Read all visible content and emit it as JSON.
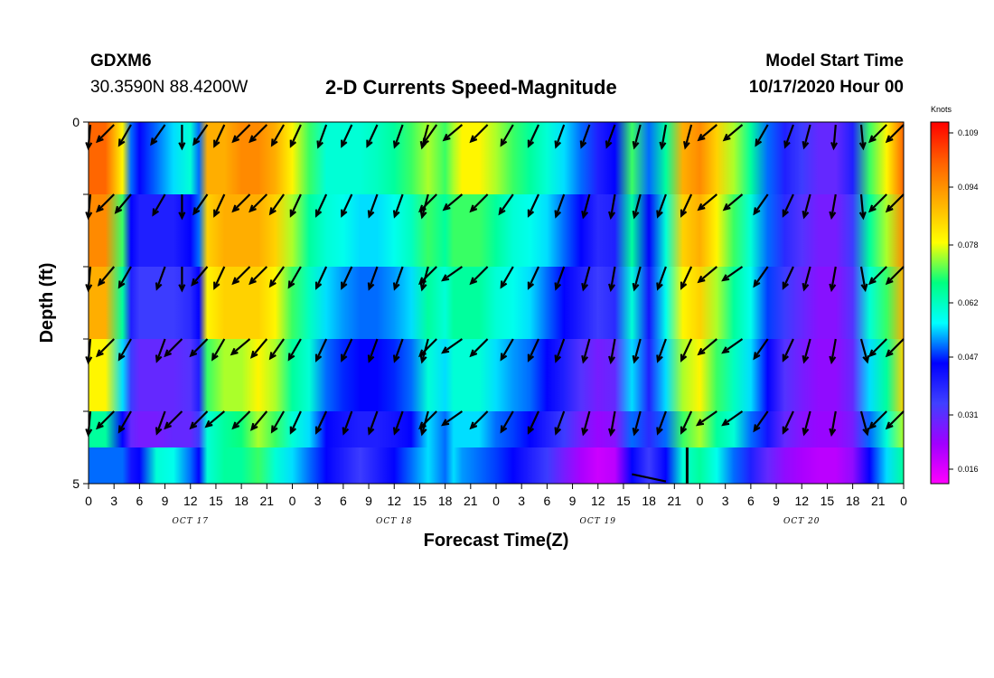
{
  "header": {
    "station_id": "GDXM6",
    "coords": "30.3590N 88.4200W",
    "title": "2-D Currents Speed-Magnitude",
    "start_label": "Model Start Time",
    "start_time": "10/17/2020 Hour 00"
  },
  "colors": {
    "scale": [
      "#ff00ff",
      "#a000ff",
      "#4040ff",
      "#0000ff",
      "#00ffff",
      "#00ff80",
      "#ffff00",
      "#ffb000",
      "#ff6000",
      "#ff0000"
    ]
  },
  "chart_data": {
    "type": "heatmap",
    "xlabel": "Forecast Time(Z)",
    "ylabel": "Depth (ft)",
    "x_unit": "hours since 10/17/2020 00Z",
    "xlim": [
      0,
      96
    ],
    "ylim": [
      0,
      5
    ],
    "x_tick_labels": [
      "0",
      "3",
      "6",
      "9",
      "12",
      "15",
      "18",
      "21",
      "0",
      "3",
      "6",
      "9",
      "12",
      "15",
      "18",
      "21",
      "0",
      "3",
      "6",
      "9",
      "12",
      "15",
      "18",
      "21",
      "0",
      "3",
      "6",
      "9",
      "12",
      "15",
      "18",
      "21",
      "0"
    ],
    "y_tick_labels": [
      "0",
      "5"
    ],
    "day_labels": [
      "OCT 17",
      "OCT 18",
      "OCT 19",
      "OCT 20"
    ],
    "colorbar": {
      "label": "Knots",
      "ticks": [
        "0.109",
        "0.094",
        "0.078",
        "0.062",
        "0.047",
        "0.031",
        "0.016"
      ],
      "range": [
        0.012,
        0.112
      ]
    },
    "depth_layers": [
      0.5,
      1.5,
      2.5,
      3.5,
      4.5
    ],
    "speed_profile_hours": [
      0,
      2,
      4,
      5,
      6,
      8,
      10,
      12,
      13,
      14,
      16,
      18,
      20,
      22,
      24,
      26,
      28,
      30,
      32,
      34,
      36,
      38,
      40,
      42,
      43,
      44,
      46,
      48,
      50,
      52,
      54,
      56,
      58,
      60,
      62,
      64,
      66,
      68,
      70,
      72,
      74,
      76,
      78,
      80,
      82,
      84,
      86,
      88,
      90,
      92,
      94,
      96
    ],
    "speed_layers": [
      [
        0.1,
        0.1,
        0.08,
        0.05,
        0.045,
        0.05,
        0.055,
        0.06,
        0.05,
        0.09,
        0.09,
        0.095,
        0.095,
        0.09,
        0.08,
        0.07,
        0.06,
        0.06,
        0.06,
        0.062,
        0.065,
        0.07,
        0.075,
        0.07,
        0.075,
        0.08,
        0.08,
        0.075,
        0.07,
        0.065,
        0.06,
        0.055,
        0.05,
        0.04,
        0.045,
        0.07,
        0.05,
        0.065,
        0.09,
        0.095,
        0.085,
        0.075,
        0.065,
        0.05,
        0.04,
        0.035,
        0.03,
        0.03,
        0.04,
        0.07,
        0.08,
        0.1
      ],
      [
        0.095,
        0.095,
        0.07,
        0.045,
        0.04,
        0.04,
        0.04,
        0.045,
        0.05,
        0.085,
        0.09,
        0.09,
        0.09,
        0.085,
        0.075,
        0.065,
        0.06,
        0.058,
        0.055,
        0.055,
        0.058,
        0.062,
        0.07,
        0.065,
        0.07,
        0.07,
        0.07,
        0.065,
        0.06,
        0.058,
        0.055,
        0.05,
        0.045,
        0.038,
        0.04,
        0.065,
        0.045,
        0.06,
        0.085,
        0.09,
        0.08,
        0.07,
        0.06,
        0.05,
        0.038,
        0.032,
        0.028,
        0.028,
        0.035,
        0.065,
        0.075,
        0.095
      ],
      [
        0.09,
        0.09,
        0.065,
        0.04,
        0.035,
        0.035,
        0.035,
        0.038,
        0.045,
        0.08,
        0.085,
        0.085,
        0.085,
        0.08,
        0.07,
        0.062,
        0.055,
        0.052,
        0.05,
        0.05,
        0.052,
        0.055,
        0.065,
        0.06,
        0.065,
        0.065,
        0.065,
        0.06,
        0.058,
        0.055,
        0.05,
        0.045,
        0.04,
        0.035,
        0.038,
        0.06,
        0.042,
        0.058,
        0.08,
        0.085,
        0.075,
        0.065,
        0.058,
        0.048,
        0.035,
        0.03,
        0.026,
        0.026,
        0.032,
        0.06,
        0.07,
        0.09
      ],
      [
        0.08,
        0.08,
        0.055,
        0.035,
        0.03,
        0.03,
        0.03,
        0.032,
        0.04,
        0.07,
        0.075,
        0.075,
        0.08,
        0.075,
        0.065,
        0.06,
        0.05,
        0.047,
        0.045,
        0.045,
        0.047,
        0.05,
        0.06,
        0.055,
        0.06,
        0.06,
        0.06,
        0.055,
        0.052,
        0.05,
        0.045,
        0.04,
        0.032,
        0.028,
        0.03,
        0.055,
        0.04,
        0.055,
        0.075,
        0.08,
        0.07,
        0.062,
        0.055,
        0.045,
        0.032,
        0.028,
        0.025,
        0.025,
        0.03,
        0.055,
        0.065,
        0.085
      ],
      [
        0.065,
        0.065,
        0.045,
        0.03,
        0.028,
        0.028,
        0.03,
        0.03,
        0.035,
        0.06,
        0.065,
        0.068,
        0.075,
        0.07,
        0.06,
        0.055,
        0.045,
        0.042,
        0.04,
        0.04,
        0.042,
        0.045,
        0.055,
        0.05,
        0.055,
        0.055,
        0.055,
        0.05,
        0.048,
        0.045,
        0.04,
        0.035,
        0.028,
        0.024,
        0.026,
        0.05,
        0.038,
        0.05,
        0.07,
        0.075,
        0.065,
        0.06,
        0.05,
        0.042,
        0.03,
        0.026,
        0.024,
        0.024,
        0.028,
        0.05,
        0.06,
        0.075
      ]
    ],
    "bottom_layer_speed": [
      0.05,
      0.05,
      0.05,
      0.042,
      0.045,
      0.06,
      0.058,
      0.05,
      0.045,
      0.06,
      0.065,
      0.065,
      0.07,
      0.06,
      0.055,
      0.05,
      0.045,
      0.04,
      0.035,
      0.04,
      0.045,
      0.05,
      0.055,
      0.05,
      0.055,
      0.052,
      0.05,
      0.048,
      0.045,
      0.04,
      0.035,
      0.028,
      0.022,
      0.018,
      0.02,
      0.045,
      0.035,
      0.045,
      0.06,
      0.065,
      0.058,
      0.05,
      0.04,
      0.03,
      0.025,
      0.022,
      0.02,
      0.02,
      0.025,
      0.045,
      0.055,
      0.065
    ],
    "vector_hours": [
      0,
      3,
      5,
      9,
      11,
      14,
      16,
      19,
      21,
      23,
      25,
      28,
      31,
      34,
      37,
      40,
      41,
      44,
      47,
      50,
      53,
      56,
      59,
      62,
      65,
      68,
      71,
      74,
      77,
      80,
      83,
      85,
      88,
      91,
      94,
      96
    ],
    "vector_directions_deg": [
      [
        265,
        225,
        240,
        235,
        270,
        235,
        245,
        225,
        225,
        240,
        245,
        250,
        245,
        245,
        250,
        255,
        235,
        220,
        225,
        240,
        245,
        250,
        250,
        250,
        255,
        260,
        255,
        220,
        220,
        240,
        250,
        255,
        265,
        275,
        225,
        225
      ],
      [
        265,
        225,
        230,
        240,
        270,
        235,
        245,
        225,
        225,
        235,
        245,
        245,
        245,
        250,
        250,
        255,
        225,
        220,
        225,
        235,
        245,
        250,
        255,
        260,
        255,
        250,
        245,
        220,
        220,
        235,
        245,
        255,
        260,
        275,
        225,
        225
      ],
      [
        265,
        230,
        240,
        250,
        270,
        230,
        245,
        225,
        225,
        235,
        240,
        245,
        245,
        250,
        250,
        255,
        225,
        215,
        225,
        240,
        245,
        250,
        255,
        260,
        255,
        250,
        245,
        220,
        215,
        235,
        245,
        255,
        260,
        280,
        225,
        225
      ],
      [
        265,
        225,
        240,
        250,
        225,
        225,
        240,
        220,
        230,
        235,
        240,
        245,
        245,
        250,
        250,
        255,
        225,
        215,
        225,
        240,
        245,
        250,
        255,
        260,
        255,
        250,
        245,
        220,
        215,
        235,
        245,
        255,
        260,
        285,
        225,
        225
      ],
      [
        265,
        225,
        240,
        250,
        225,
        225,
        220,
        225,
        230,
        240,
        245,
        245,
        250,
        250,
        250,
        255,
        225,
        215,
        225,
        240,
        245,
        250,
        255,
        260,
        255,
        250,
        245,
        215,
        215,
        235,
        245,
        255,
        260,
        285,
        225,
        225
      ]
    ]
  }
}
